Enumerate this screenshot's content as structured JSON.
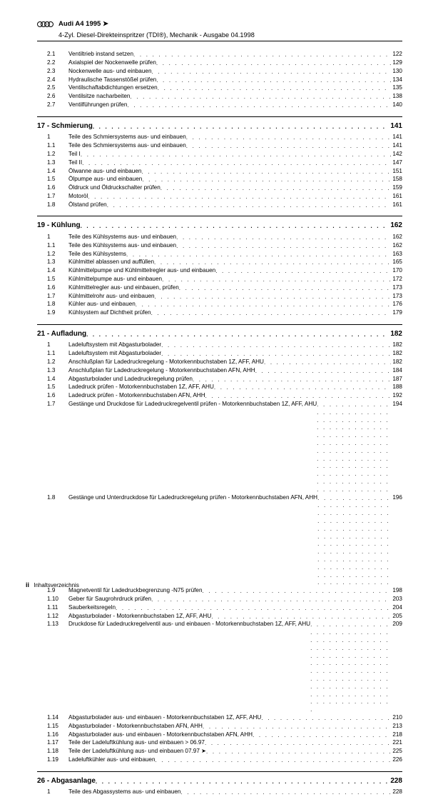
{
  "header": {
    "brand": "Audi",
    "title": "Audi A4 1995 ➤",
    "subtitle": "4-Zyl. Diesel-Direkteinspritzer (TDI®), Mechanik - Ausgabe 04.1998"
  },
  "footer": {
    "page_roman": "ii",
    "label": "Inhaltsverzeichnis"
  },
  "groups": [
    {
      "heading": null,
      "entries": [
        {
          "num": "2.1",
          "label": "Ventiltrieb instand setzen",
          "page": "122"
        },
        {
          "num": "2.2",
          "label": "Axialspiel der Nockenwelle prüfen",
          "page": "129"
        },
        {
          "num": "2.3",
          "label": "Nockenwelle aus- und einbauen",
          "page": "130"
        },
        {
          "num": "2.4",
          "label": "Hydraulische Tassenstößel prüfen",
          "page": "134"
        },
        {
          "num": "2.5",
          "label": "Ventilschaftabdichtungen ersetzen",
          "page": "135"
        },
        {
          "num": "2.6",
          "label": "Ventilsitze nacharbeiten",
          "page": "138"
        },
        {
          "num": "2.7",
          "label": "Ventilführungen prüfen",
          "page": "140"
        }
      ]
    },
    {
      "heading": {
        "label": "17 - Schmierung",
        "page": "141"
      },
      "entries": [
        {
          "num": "1",
          "label": "Teile des Schmiersystems aus- und einbauen",
          "page": "141"
        },
        {
          "num": "1.1",
          "label": "Teile des Schmiersystems aus- und einbauen",
          "page": "141"
        },
        {
          "num": "1.2",
          "label": "Teil I",
          "page": "142"
        },
        {
          "num": "1.3",
          "label": "Teil II",
          "page": "147"
        },
        {
          "num": "1.4",
          "label": "Ölwanne aus- und einbauen",
          "page": "151"
        },
        {
          "num": "1.5",
          "label": "Ölpumpe aus- und einbauen",
          "page": "158"
        },
        {
          "num": "1.6",
          "label": "Öldruck und Öldruckschalter prüfen",
          "page": "159"
        },
        {
          "num": "1.7",
          "label": "Motoröl",
          "page": "161"
        },
        {
          "num": "1.8",
          "label": "Ölstand prüfen",
          "page": "161"
        }
      ]
    },
    {
      "heading": {
        "label": "19 - Kühlung",
        "page": "162"
      },
      "entries": [
        {
          "num": "1",
          "label": "Teile des Kühlsystems aus- und einbauen",
          "page": "162"
        },
        {
          "num": "1.1",
          "label": "Teile des Kühlsystems aus- und einbauen",
          "page": "162"
        },
        {
          "num": "1.2",
          "label": "Teile des Kühlsystems",
          "page": "163"
        },
        {
          "num": "1.3",
          "label": "Kühlmittel ablassen und auffüllen",
          "page": "165"
        },
        {
          "num": "1.4",
          "label": "Kühlmittelpumpe und Kühlmittelregler aus- und einbauen",
          "page": "170"
        },
        {
          "num": "1.5",
          "label": "Kühlmittelpumpe aus- und einbauen",
          "page": "172"
        },
        {
          "num": "1.6",
          "label": "Kühlmittelregler aus- und einbauen, prüfen",
          "page": "173"
        },
        {
          "num": "1.7",
          "label": "Kühlmittelrohr aus- und einbauen",
          "page": "173"
        },
        {
          "num": "1.8",
          "label": "Kühler aus- und einbauen",
          "page": "176"
        },
        {
          "num": "1.9",
          "label": "Kühlsystem auf Dichtheit prüfen",
          "page": "179"
        }
      ]
    },
    {
      "heading": {
        "label": "21 - Aufladung",
        "page": "182"
      },
      "entries": [
        {
          "num": "1",
          "label": "Ladeluftsystem mit Abgasturbolader",
          "page": "182"
        },
        {
          "num": "1.1",
          "label": "Ladeluftsystem mit Abgasturbolader",
          "page": "182"
        },
        {
          "num": "1.2",
          "label": "Anschlußplan für Ladedruckregelung - Motorkennbuchstaben 1Z, AFF, AHU",
          "page": "182"
        },
        {
          "num": "1.3",
          "label": "Anschlußplan für Ladedruckregelung - Motorkennbuchstaben AFN, AHH",
          "page": "184"
        },
        {
          "num": "1.4",
          "label": "Abgasturbolader und Ladedruckregelung prüfen",
          "page": "187"
        },
        {
          "num": "1.5",
          "label": "Ladedruck prüfen - Motorkennbuchstaben 1Z, AFF, AHU",
          "page": "188"
        },
        {
          "num": "1.6",
          "label": "Ladedruck prüfen - Motorkennbuchstaben AFN, AHH",
          "page": "192"
        },
        {
          "num": "1.7",
          "label": "Gestänge und Druckdose für Ladedruckregelventil prüfen - Motorkennbuchstaben 1Z, AFF, AHU",
          "page": "194",
          "wrap": true
        },
        {
          "num": "1.8",
          "label": "Gestänge und Unterdruckdose für Ladedruckregelung prüfen - Motorkennbuchstaben AFN, AHH",
          "page": "196",
          "wrap": true
        },
        {
          "num": "1.9",
          "label": "Magnetventil für Ladedruckbegrenzung -N75 prüfen",
          "page": "198"
        },
        {
          "num": "1.10",
          "label": "Geber für Saugrohrdruck prüfen",
          "page": "203"
        },
        {
          "num": "1.11",
          "label": "Sauberkeitsregeln",
          "page": "204"
        },
        {
          "num": "1.12",
          "label": "Abgasturbolader - Motorkennbuchstaben 1Z, AFF, AHU",
          "page": "205"
        },
        {
          "num": "1.13",
          "label": "Druckdose für Ladedruckregelventil aus- und einbauen - Motorkennbuchstaben 1Z, AFF, AHU",
          "page": "209",
          "wrap": true
        },
        {
          "num": "1.14",
          "label": "Abgasturbolader aus- und einbauen - Motorkennbuchstaben 1Z, AFF, AHU",
          "page": "210"
        },
        {
          "num": "1.15",
          "label": "Abgasturbolader - Motorkennbuchstaben AFN, AHH",
          "page": "213"
        },
        {
          "num": "1.16",
          "label": "Abgasturbolader aus- und einbauen - Motorkennbuchstaben AFN, AHH",
          "page": "218"
        },
        {
          "num": "1.17",
          "label": "Teile der Ladeluftkühlung aus- und einbauen > 06.97",
          "page": "221"
        },
        {
          "num": "1.18",
          "label": "Teile der Ladeluftkühlung aus- und einbauen 07.97 ➤",
          "page": "225"
        },
        {
          "num": "1.19",
          "label": "Ladeluftkühler aus- und einbauen",
          "page": "226"
        }
      ]
    },
    {
      "heading": {
        "label": "26 - Abgasanlage",
        "page": "228"
      },
      "entries": [
        {
          "num": "1",
          "label": "Teile des Abgassystems aus- und einbauen",
          "page": "228"
        }
      ]
    }
  ]
}
